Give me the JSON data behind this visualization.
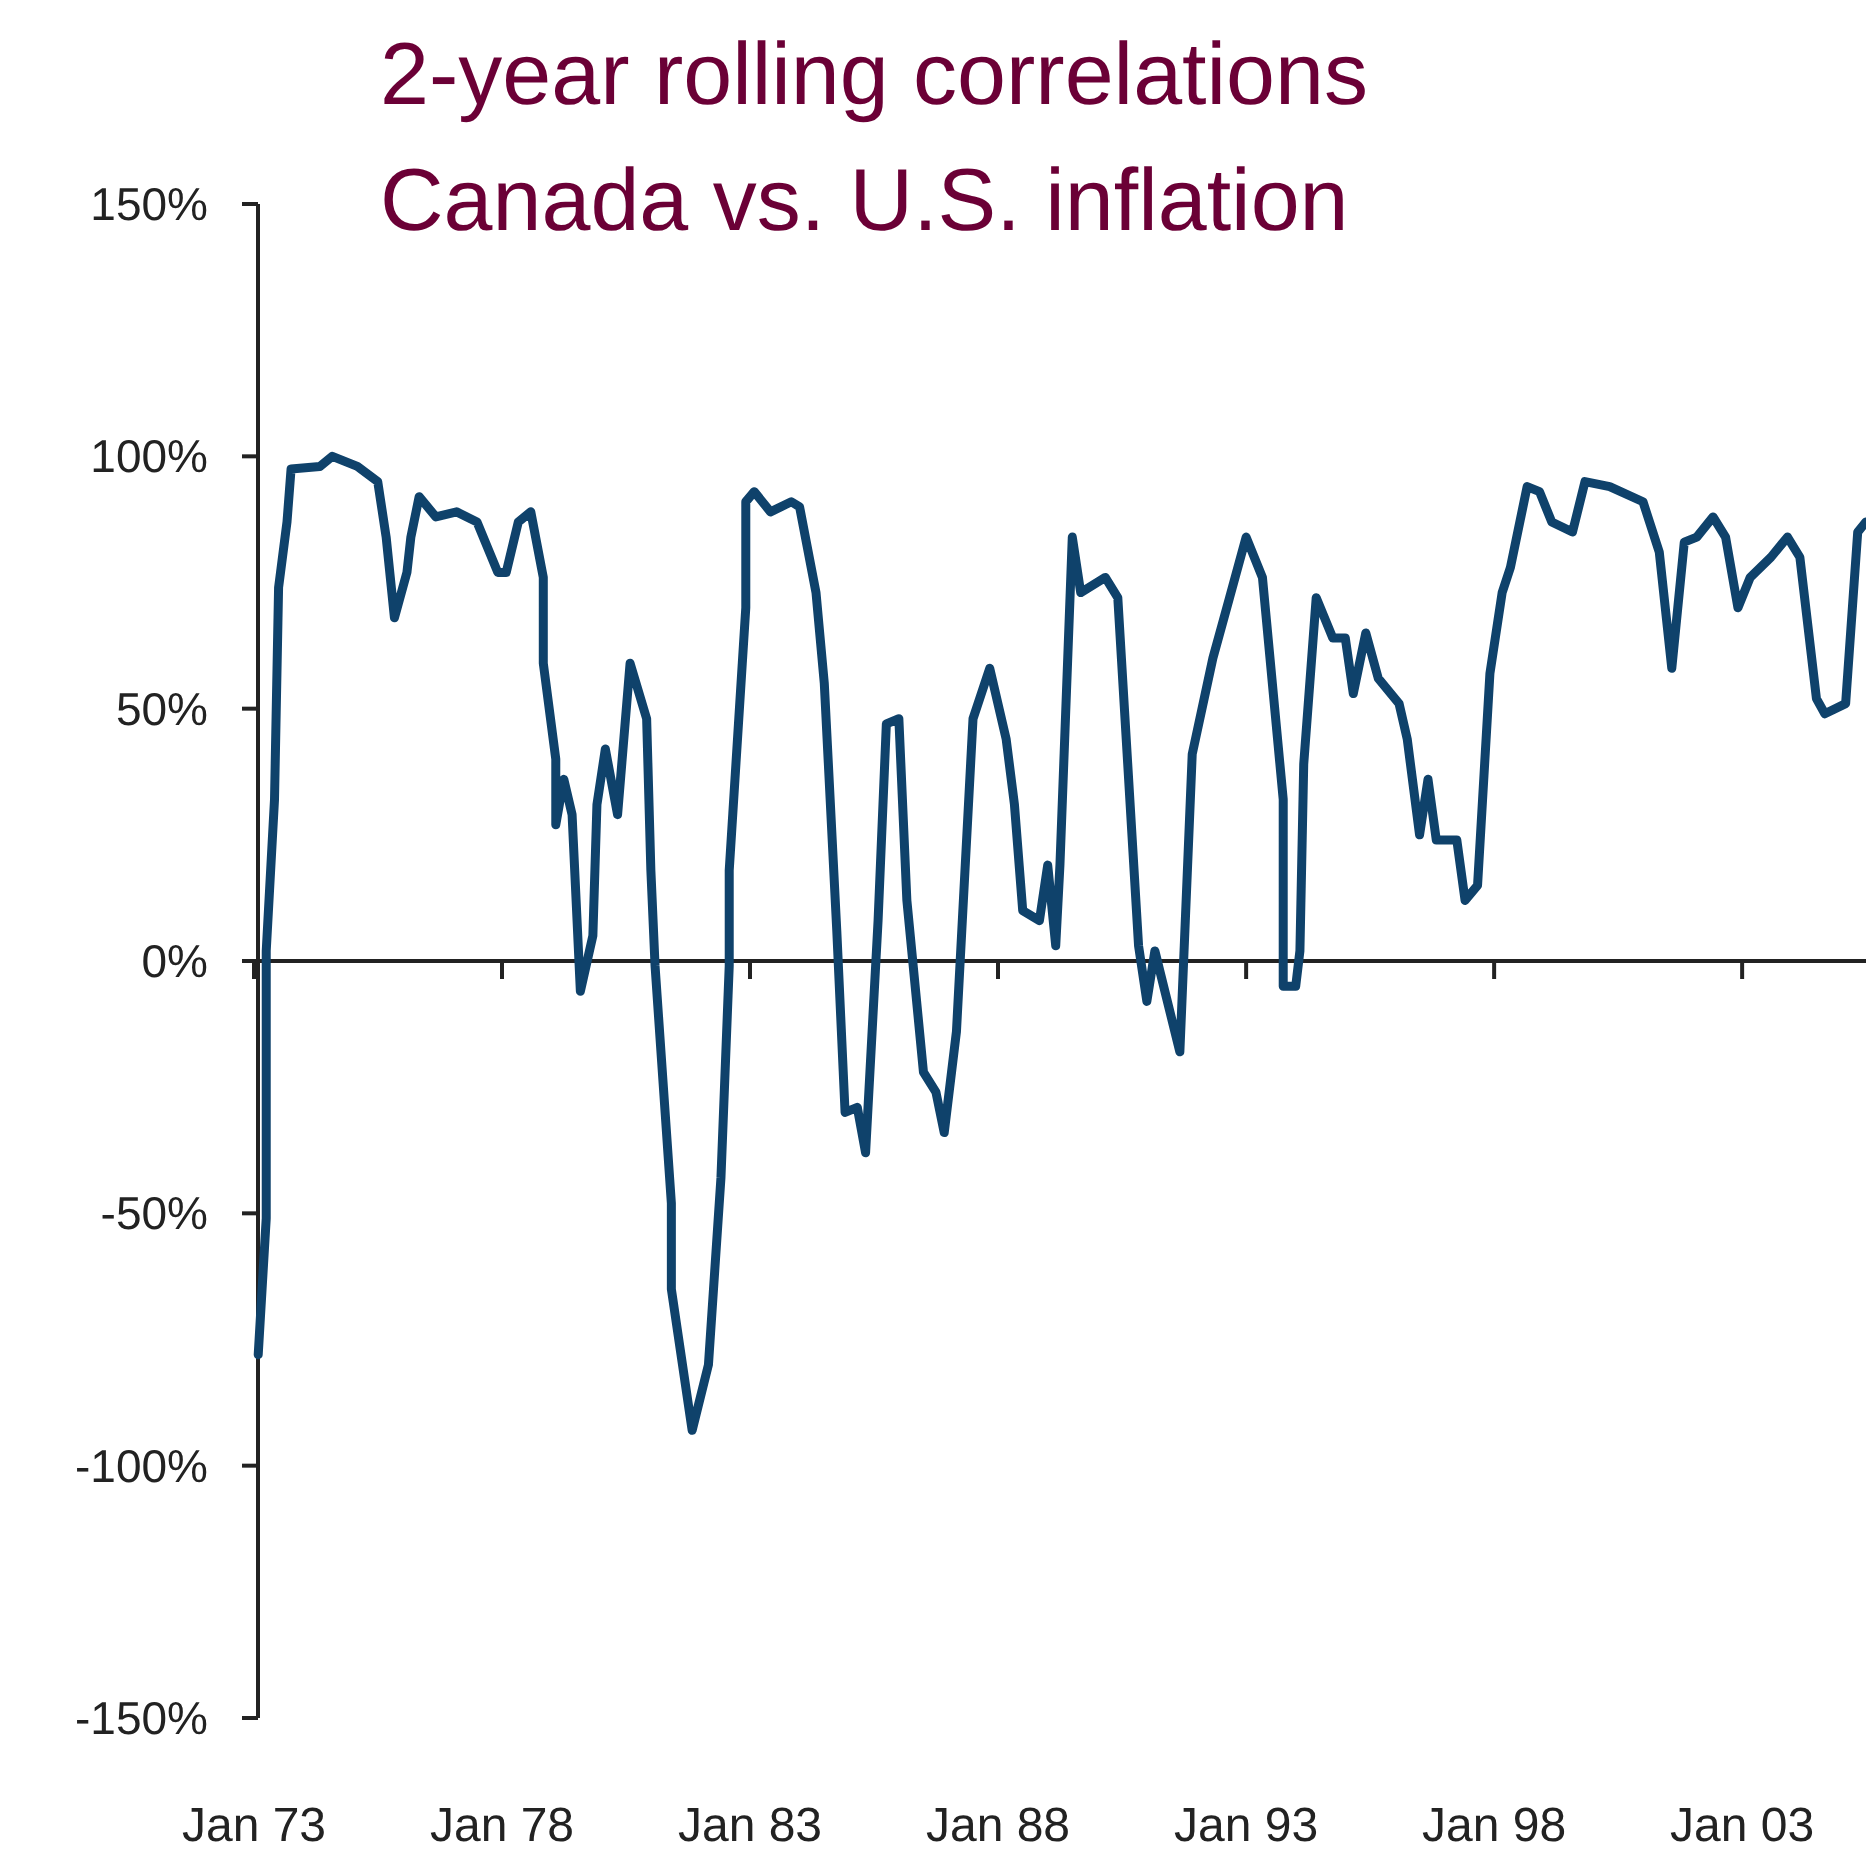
{
  "chart_data": {
    "type": "line",
    "title": "2-year rolling correlations\nCanada vs. U.S. inflation",
    "xlim": [
      "1973-01",
      "2005-07"
    ],
    "xticks": [
      {
        "value": "1973-01",
        "label": "Jan 73"
      },
      {
        "value": "1978-01",
        "label": "Jan 78"
      },
      {
        "value": "1983-01",
        "label": "Jan 83"
      },
      {
        "value": "1988-01",
        "label": "Jan 88"
      },
      {
        "value": "1993-01",
        "label": "Jan 93"
      },
      {
        "value": "1998-01",
        "label": "Jan 98"
      },
      {
        "value": "2003-01",
        "label": "Jan 03"
      }
    ],
    "ylim": [
      -150,
      150
    ],
    "yticks": [
      {
        "value": 150,
        "label": "150%"
      },
      {
        "value": 100,
        "label": "100%"
      },
      {
        "value": 50,
        "label": "50%"
      },
      {
        "value": 0,
        "label": "0%"
      },
      {
        "value": -50,
        "label": "-50%"
      },
      {
        "value": -100,
        "label": "-100%"
      },
      {
        "value": -150,
        "label": "-150%"
      }
    ],
    "grid": false,
    "ref_lines": [
      {
        "axis": "y",
        "value": 0,
        "color": "#222222"
      }
    ],
    "marker": "none",
    "line_style": "solid",
    "series": [
      {
        "color": "#0f426b",
        "x": [
          "1973-02",
          "1973-04",
          "1973-04",
          "1973-06",
          "1973-07",
          "1973-09",
          "1973-10",
          "1974-05",
          "1974-08",
          "1975-02",
          "1975-07",
          "1975-09",
          "1975-11",
          "1976-02",
          "1976-03",
          "1976-05",
          "1976-09",
          "1977-02",
          "1977-07",
          "1977-12",
          "1978-02",
          "1978-05",
          "1978-08",
          "1978-11",
          "1978-11",
          "1979-02",
          "1979-02",
          "1979-04",
          "1979-06",
          "1979-08",
          "1979-11",
          "1979-12",
          "1980-02",
          "1980-05",
          "1980-08",
          "1980-12",
          "1981-01",
          "1981-02",
          "1981-06",
          "1981-06",
          "1981-11",
          "1982-03",
          "1982-06",
          "1982-08",
          "1982-08",
          "1982-12",
          "1982-12",
          "1983-02",
          "1983-06",
          "1983-11",
          "1984-01",
          "1984-05",
          "1984-07",
          "1984-10",
          "1984-12",
          "1985-03",
          "1985-05",
          "1985-08",
          "1985-10",
          "1986-01",
          "1986-03",
          "1986-07",
          "1986-10",
          "1986-12",
          "1987-03",
          "1987-07",
          "1987-11",
          "1988-03",
          "1988-05",
          "1988-07",
          "1988-11",
          "1989-01",
          "1989-03",
          "1989-04",
          "1989-07",
          "1989-09",
          "1990-03",
          "1990-06",
          "1990-11",
          "1991-01",
          "1991-03",
          "1991-09",
          "1991-12",
          "1992-05",
          "1992-09",
          "1993-01",
          "1993-05",
          "1993-10",
          "1993-10",
          "1994-01",
          "1994-02",
          "1994-03",
          "1994-06",
          "1994-10",
          "1995-01",
          "1995-03",
          "1995-06",
          "1995-09",
          "1996-02",
          "1996-04",
          "1996-07",
          "1996-09",
          "1996-11",
          "1997-04",
          "1997-06",
          "1997-09",
          "1997-12",
          "1998-03",
          "1998-05",
          "1998-09",
          "1998-12",
          "1999-03",
          "1999-08",
          "1999-11",
          "2000-05",
          "2001-01",
          "2001-05",
          "2001-08",
          "2001-11",
          "2002-02",
          "2002-06",
          "2002-09",
          "2002-12",
          "2003-03",
          "2003-08",
          "2003-12",
          "2004-03",
          "2004-07",
          "2004-09",
          "2005-02",
          "2005-05",
          "2005-07"
        ],
        "values": [
          -78,
          -51,
          2,
          32,
          74,
          87,
          97.5,
          98,
          100,
          98,
          95,
          84,
          68,
          77,
          84,
          92,
          88,
          89,
          87,
          77,
          77,
          87,
          89,
          76,
          59,
          40,
          27,
          36,
          29,
          -6,
          5,
          31,
          42,
          29,
          59,
          48,
          18,
          -1,
          -48,
          -65,
          -93,
          -80,
          -43,
          -1,
          18,
          70,
          91,
          93,
          89,
          91,
          90,
          73,
          55,
          6,
          -30,
          -29,
          -38,
          8,
          47,
          48,
          12,
          -22,
          -26,
          -34,
          -14,
          48,
          58,
          44,
          31,
          10,
          8,
          19,
          3,
          19,
          84,
          73,
          76,
          72,
          3,
          -8,
          2,
          -18,
          41,
          60,
          72,
          84,
          76,
          32,
          -5,
          -5,
          2,
          39,
          72,
          64,
          64,
          53,
          65,
          56,
          51,
          44,
          25,
          36,
          24,
          24,
          12,
          15,
          57,
          73,
          78,
          94,
          93,
          87,
          85,
          95,
          94,
          91,
          81,
          58,
          83,
          84,
          88,
          84,
          70,
          76,
          80,
          84,
          80,
          52,
          49,
          51,
          85,
          87
        ]
      }
    ]
  }
}
